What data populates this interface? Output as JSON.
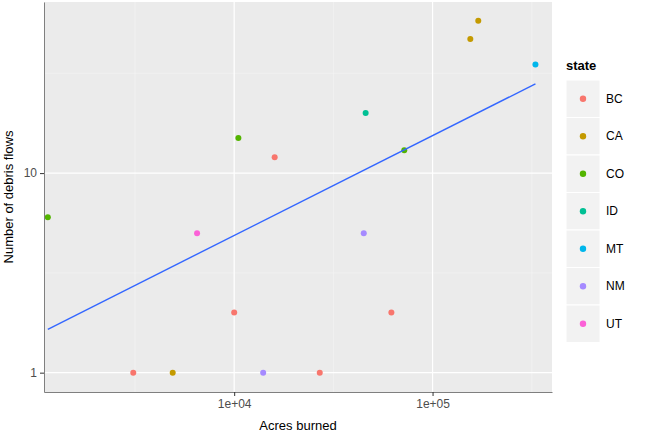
{
  "chart_data": {
    "type": "scatter",
    "x_label": "Acres burned",
    "y_label": "Number of debris flows",
    "legend_title": "state",
    "log": true,
    "grid": true,
    "legend": "right",
    "marker": "circle",
    "xlim": [
      1100,
      400000
    ],
    "ylim": [
      0.8,
      72
    ],
    "xticks": [
      {
        "value": 10000,
        "label": "1e+04"
      },
      {
        "value": 100000,
        "label": "1e+05"
      }
    ],
    "yticks": [
      1,
      10
    ],
    "series": [
      {
        "name": "BC",
        "color": "#F8766D",
        "x": [
          3100,
          10000,
          16000,
          27000,
          62000
        ],
        "values": [
          1,
          2,
          12,
          1,
          2
        ]
      },
      {
        "name": "CA",
        "color": "#C49A00",
        "x": [
          4900,
          155000,
          170000
        ],
        "values": [
          1,
          47,
          58
        ]
      },
      {
        "name": "CO",
        "color": "#53B400",
        "x": [
          1150,
          10500,
          72000
        ],
        "values": [
          6,
          15,
          13
        ]
      },
      {
        "name": "ID",
        "color": "#00C094",
        "x": [
          46000
        ],
        "values": [
          20
        ]
      },
      {
        "name": "MT",
        "color": "#00B6EB",
        "x": [
          330000
        ],
        "values": [
          35
        ]
      },
      {
        "name": "NM",
        "color": "#A58AFF",
        "x": [
          14000,
          45000
        ],
        "values": [
          1,
          5
        ]
      },
      {
        "name": "UT",
        "color": "#FB61D7",
        "x": [
          6500
        ],
        "values": [
          5
        ]
      }
    ],
    "trend_line": {
      "x": [
        1150,
        330000
      ],
      "values": [
        1.65,
        28
      ],
      "color": "#3366FF"
    }
  }
}
